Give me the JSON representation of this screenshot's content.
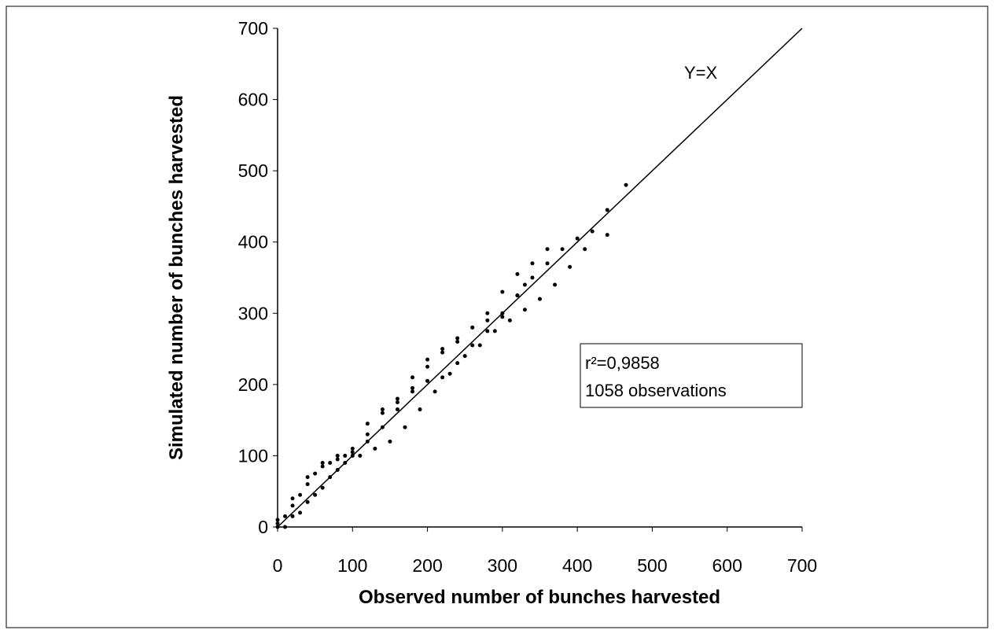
{
  "chart_data": {
    "type": "scatter",
    "x_label": "Observed number of bunches harvested",
    "y_label": "Simulated number of bunches harvested",
    "xlim": [
      0,
      700
    ],
    "ylim": [
      0,
      700
    ],
    "xticks": [
      0,
      100,
      200,
      300,
      400,
      500,
      600,
      700
    ],
    "yticks": [
      0,
      100,
      200,
      300,
      400,
      500,
      600,
      700
    ],
    "color": "#000000",
    "annotations": [
      "Y=X",
      "r²=0,9858",
      "1058 observations"
    ],
    "x": [
      0,
      10,
      20,
      30,
      40,
      50,
      60,
      70,
      80,
      90,
      100,
      120,
      140,
      160,
      180,
      200,
      220,
      240,
      260,
      280,
      300,
      320,
      340,
      360,
      0,
      20,
      40,
      60,
      80,
      100,
      120,
      140,
      160,
      180,
      200,
      220,
      240,
      260,
      280,
      300,
      320,
      340,
      360,
      380,
      400,
      420,
      440,
      465,
      10,
      30,
      50,
      70,
      90,
      110,
      130,
      150,
      170,
      190,
      210,
      230,
      250,
      270,
      290,
      310,
      330,
      350,
      370,
      390,
      410,
      440,
      0,
      20,
      40,
      60,
      80,
      100,
      120,
      140,
      160,
      180,
      200,
      220,
      240,
      260,
      280,
      300,
      320,
      330
    ],
    "y": [
      5,
      15,
      30,
      45,
      60,
      75,
      85,
      90,
      95,
      100,
      105,
      130,
      160,
      175,
      195,
      225,
      245,
      260,
      280,
      300,
      330,
      355,
      370,
      390,
      0,
      15,
      35,
      55,
      80,
      100,
      120,
      140,
      165,
      190,
      205,
      210,
      230,
      255,
      275,
      295,
      325,
      350,
      370,
      390,
      405,
      415,
      445,
      480,
      0,
      20,
      45,
      70,
      90,
      100,
      110,
      120,
      140,
      165,
      190,
      215,
      240,
      255,
      275,
      290,
      305,
      320,
      340,
      365,
      390,
      410,
      10,
      40,
      70,
      90,
      100,
      110,
      145,
      165,
      180,
      210,
      235,
      250,
      265,
      280,
      290,
      300,
      325,
      340
    ]
  }
}
